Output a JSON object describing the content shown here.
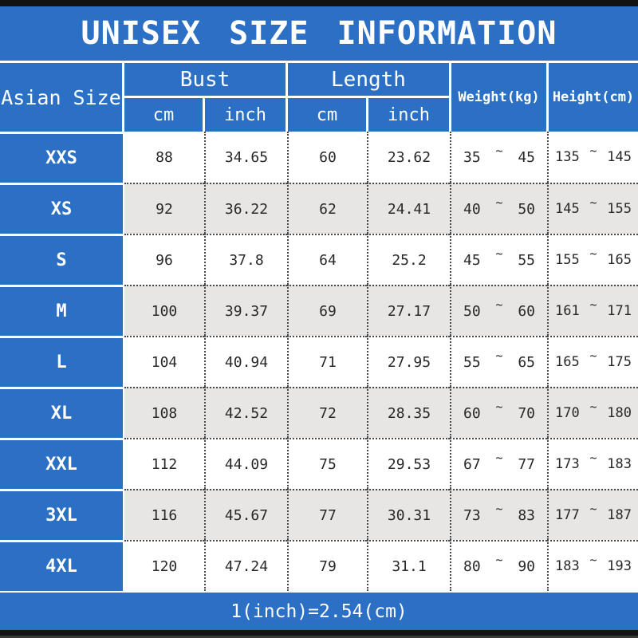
{
  "title": "UNISEX SIZE INFORMATION",
  "header": {
    "size_col": "Asian Size",
    "bust": {
      "label": "Bust",
      "cm": "cm",
      "inch": "inch"
    },
    "length": {
      "label": "Length",
      "cm": "cm",
      "inch": "inch"
    },
    "weight": "Weight(kg)",
    "height": "Height(cm)"
  },
  "tilde": "~",
  "rows": [
    {
      "size": "XXS",
      "bust_cm": "88",
      "bust_inch": "34.65",
      "length_cm": "60",
      "length_inch": "23.62",
      "weight_min": "35",
      "weight_max": "45",
      "height_min": "135",
      "height_max": "145"
    },
    {
      "size": "XS",
      "bust_cm": "92",
      "bust_inch": "36.22",
      "length_cm": "62",
      "length_inch": "24.41",
      "weight_min": "40",
      "weight_max": "50",
      "height_min": "145",
      "height_max": "155"
    },
    {
      "size": "S",
      "bust_cm": "96",
      "bust_inch": "37.8",
      "length_cm": "64",
      "length_inch": "25.2",
      "weight_min": "45",
      "weight_max": "55",
      "height_min": "155",
      "height_max": "165"
    },
    {
      "size": "M",
      "bust_cm": "100",
      "bust_inch": "39.37",
      "length_cm": "69",
      "length_inch": "27.17",
      "weight_min": "50",
      "weight_max": "60",
      "height_min": "161",
      "height_max": "171"
    },
    {
      "size": "L",
      "bust_cm": "104",
      "bust_inch": "40.94",
      "length_cm": "71",
      "length_inch": "27.95",
      "weight_min": "55",
      "weight_max": "65",
      "height_min": "165",
      "height_max": "175"
    },
    {
      "size": "XL",
      "bust_cm": "108",
      "bust_inch": "42.52",
      "length_cm": "72",
      "length_inch": "28.35",
      "weight_min": "60",
      "weight_max": "70",
      "height_min": "170",
      "height_max": "180"
    },
    {
      "size": "XXL",
      "bust_cm": "112",
      "bust_inch": "44.09",
      "length_cm": "75",
      "length_inch": "29.53",
      "weight_min": "67",
      "weight_max": "77",
      "height_min": "173",
      "height_max": "183"
    },
    {
      "size": "3XL",
      "bust_cm": "116",
      "bust_inch": "45.67",
      "length_cm": "77",
      "length_inch": "30.31",
      "weight_min": "73",
      "weight_max": "83",
      "height_min": "177",
      "height_max": "187"
    },
    {
      "size": "4XL",
      "bust_cm": "120",
      "bust_inch": "47.24",
      "length_cm": "79",
      "length_inch": "31.1",
      "weight_min": "80",
      "weight_max": "90",
      "height_min": "183",
      "height_max": "193"
    }
  ],
  "footer": "1(inch)=2.54(cm)",
  "colors": {
    "accent_blue": "#2b70c4",
    "alt_row_gray": "#e7e6e4",
    "border_black": "#141414",
    "dotted_line": "#4a4a4a"
  }
}
